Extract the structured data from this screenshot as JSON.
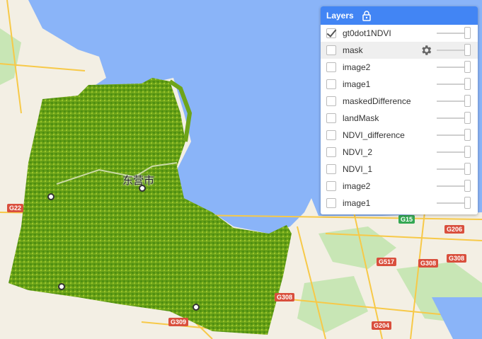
{
  "map": {
    "road_labels": [
      "G15",
      "G206",
      "G517",
      "G308",
      "G308",
      "G204",
      "G309",
      "G308",
      "G22"
    ],
    "city_labels": [
      "东营市"
    ],
    "colors": {
      "water": "#8ab4f8",
      "land": "#f4f1e8",
      "green_land": "#c5e3b4",
      "ndvi_dark": "#4f8f10",
      "ndvi_light": "#8fbf1f",
      "road_yellow": "#f7c948",
      "road_red": "#d94f3d"
    }
  },
  "layers_panel": {
    "title": "Layers",
    "header_icon": "lock-icon",
    "layers": [
      {
        "name": "gt0dot1NDVI",
        "checked": true
      },
      {
        "name": "mask",
        "checked": false,
        "hovered": true
      },
      {
        "name": "image2",
        "checked": false
      },
      {
        "name": "image1",
        "checked": false
      },
      {
        "name": "maskedDifference",
        "checked": false
      },
      {
        "name": "landMask",
        "checked": false
      },
      {
        "name": "NDVI_difference",
        "checked": false
      },
      {
        "name": "NDVI_2",
        "checked": false
      },
      {
        "name": "NDVI_1",
        "checked": false
      },
      {
        "name": "image2",
        "checked": false
      },
      {
        "name": "image1",
        "checked": false
      }
    ],
    "opacity": 1
  }
}
